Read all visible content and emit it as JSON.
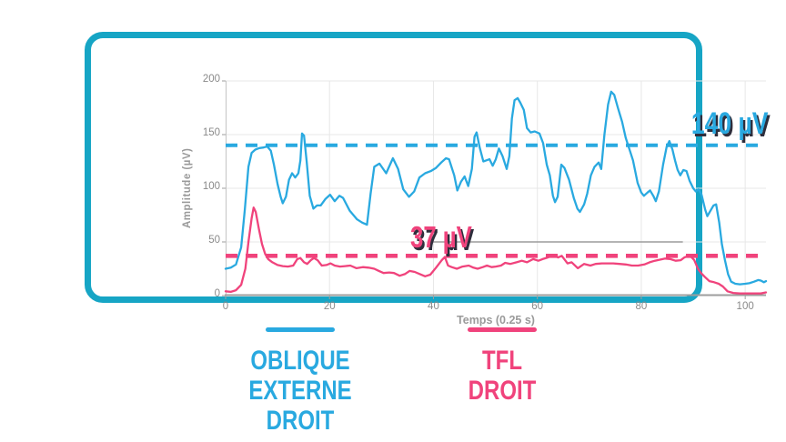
{
  "colors": {
    "frame_teal": "#16a5c5",
    "blue": "#29a9e0",
    "pink": "#f0437c",
    "annotation_shadow": "#2e2e3c",
    "gridline": "#e7e7e7",
    "axis_line": "#9e9e9e",
    "y_axis_line": "#c4c4c4",
    "tick_text": "#8a8a8a",
    "marker_gray": "#9b9b9b"
  },
  "chart_data": {
    "type": "line",
    "title": "",
    "xlabel": "Temps (0.25 s)",
    "ylabel": "Amplitude (µV)",
    "xlim": [
      0,
      104
    ],
    "ylim": [
      0,
      200
    ],
    "x_ticks": [
      0,
      20,
      40,
      60,
      80,
      100
    ],
    "y_ticks": [
      0,
      50,
      100,
      150,
      200
    ],
    "grid": true,
    "legend_position": "bottom",
    "thresholds": [
      {
        "label": "140 µV",
        "value": 140,
        "series": "OBLIQUE EXTERNE DROIT",
        "color": "#29a9e0",
        "dash_width": 4
      },
      {
        "label": "37 µV",
        "value": 37,
        "series": "TFL DROIT",
        "color": "#f0437c",
        "dash_width": 4.6
      }
    ],
    "marker_line": {
      "y": 50,
      "x_start": 39.5,
      "x_end": 88,
      "color": "#9b9b9b"
    },
    "series": [
      {
        "name": "OBLIQUE EXTERNE DROIT",
        "color": "#29a9e0",
        "points": [
          [
            0,
            25
          ],
          [
            1,
            26
          ],
          [
            2,
            29
          ],
          [
            3,
            45
          ],
          [
            3.7,
            80
          ],
          [
            4.4,
            120
          ],
          [
            5,
            133
          ],
          [
            5.7,
            136
          ],
          [
            6.5,
            137.5
          ],
          [
            7.3,
            138
          ],
          [
            8,
            139
          ],
          [
            8.7,
            135
          ],
          [
            9.3,
            122
          ],
          [
            10,
            104
          ],
          [
            10.6,
            92
          ],
          [
            11,
            86
          ],
          [
            11.6,
            92
          ],
          [
            12.2,
            108
          ],
          [
            12.8,
            114
          ],
          [
            13.4,
            110
          ],
          [
            14,
            114
          ],
          [
            14.4,
            126
          ],
          [
            14.7,
            151
          ],
          [
            15.1,
            149
          ],
          [
            15.6,
            125
          ],
          [
            16.2,
            93
          ],
          [
            16.9,
            81
          ],
          [
            17.6,
            84
          ],
          [
            18.3,
            84
          ],
          [
            19.2,
            90
          ],
          [
            20.1,
            94
          ],
          [
            21,
            88
          ],
          [
            21.9,
            93
          ],
          [
            22.6,
            91
          ],
          [
            23.9,
            79
          ],
          [
            25.3,
            71
          ],
          [
            26.3,
            68
          ],
          [
            27.2,
            66
          ],
          [
            27.9,
            95
          ],
          [
            28.6,
            120
          ],
          [
            29.6,
            123
          ],
          [
            30.9,
            114
          ],
          [
            32.2,
            128
          ],
          [
            33.2,
            118
          ],
          [
            34.2,
            99
          ],
          [
            35.3,
            92
          ],
          [
            36.3,
            97
          ],
          [
            37.3,
            110
          ],
          [
            38.4,
            114
          ],
          [
            39.5,
            116
          ],
          [
            40.5,
            119
          ],
          [
            41.5,
            124
          ],
          [
            42.4,
            128
          ],
          [
            43,
            127
          ],
          [
            44,
            112
          ],
          [
            44.6,
            98
          ],
          [
            45.3,
            106
          ],
          [
            46,
            111
          ],
          [
            46.7,
            102
          ],
          [
            47.4,
            118
          ],
          [
            47.9,
            148
          ],
          [
            48.3,
            152
          ],
          [
            48.9,
            138
          ],
          [
            49.6,
            125
          ],
          [
            50.2,
            126
          ],
          [
            50.8,
            127
          ],
          [
            51.4,
            121
          ],
          [
            52,
            127
          ],
          [
            52.6,
            137
          ],
          [
            53.3,
            130
          ],
          [
            54.1,
            118
          ],
          [
            54.6,
            130
          ],
          [
            55.1,
            165
          ],
          [
            55.6,
            182
          ],
          [
            56.2,
            184
          ],
          [
            56.7,
            180
          ],
          [
            57.4,
            173
          ],
          [
            58,
            156
          ],
          [
            58.7,
            152
          ],
          [
            59.5,
            153
          ],
          [
            60.4,
            151
          ],
          [
            61.1,
            142
          ],
          [
            61.8,
            122
          ],
          [
            62.4,
            112
          ],
          [
            63,
            93
          ],
          [
            63.4,
            87
          ],
          [
            63.9,
            92
          ],
          [
            64.6,
            122
          ],
          [
            65.2,
            119
          ],
          [
            66.1,
            108
          ],
          [
            67,
            91
          ],
          [
            67.7,
            81
          ],
          [
            68.2,
            78
          ],
          [
            69,
            85
          ],
          [
            69.6,
            95
          ],
          [
            70.3,
            112
          ],
          [
            71,
            120
          ],
          [
            71.8,
            124
          ],
          [
            72.3,
            118
          ],
          [
            72.9,
            150
          ],
          [
            73.6,
            178
          ],
          [
            74.2,
            190
          ],
          [
            74.8,
            187
          ],
          [
            75.5,
            175
          ],
          [
            76.3,
            162
          ],
          [
            77,
            147
          ],
          [
            77.8,
            135
          ],
          [
            78.4,
            126
          ],
          [
            79.3,
            105
          ],
          [
            80,
            96
          ],
          [
            80.5,
            93
          ],
          [
            81.2,
            96
          ],
          [
            81.7,
            98
          ],
          [
            82.3,
            93
          ],
          [
            82.8,
            88
          ],
          [
            83.4,
            97
          ],
          [
            84.2,
            122
          ],
          [
            84.9,
            139
          ],
          [
            85.4,
            144
          ],
          [
            86,
            136
          ],
          [
            86.5,
            126
          ],
          [
            87,
            117
          ],
          [
            87.5,
            112
          ],
          [
            88.1,
            117
          ],
          [
            88.7,
            116
          ],
          [
            89.3,
            107
          ],
          [
            90,
            100
          ],
          [
            90.5,
            97
          ],
          [
            91,
            99
          ],
          [
            91.6,
            94
          ],
          [
            92.3,
            80
          ],
          [
            92.7,
            74
          ],
          [
            93.3,
            79
          ],
          [
            93.9,
            84
          ],
          [
            94.4,
            85
          ],
          [
            95,
            68
          ],
          [
            95.5,
            48
          ],
          [
            96.1,
            33
          ],
          [
            96.7,
            20
          ],
          [
            97.3,
            13
          ],
          [
            98.1,
            11
          ],
          [
            99,
            10.5
          ],
          [
            100,
            11
          ],
          [
            100.8,
            11.5
          ],
          [
            101.7,
            13
          ],
          [
            102.5,
            14.5
          ],
          [
            103,
            14
          ],
          [
            103.6,
            12.5
          ],
          [
            104,
            13.5
          ]
        ]
      },
      {
        "name": "TFL DROIT",
        "color": "#f0437c",
        "points": [
          [
            0,
            4
          ],
          [
            1,
            3.5
          ],
          [
            2,
            5
          ],
          [
            3,
            10
          ],
          [
            3.8,
            25
          ],
          [
            4.4,
            50
          ],
          [
            5,
            72
          ],
          [
            5.4,
            82
          ],
          [
            5.8,
            78
          ],
          [
            6.4,
            62
          ],
          [
            7,
            48
          ],
          [
            7.6,
            39
          ],
          [
            8.2,
            34
          ],
          [
            9,
            31
          ],
          [
            10,
            28.5
          ],
          [
            11,
            27.5
          ],
          [
            12,
            27
          ],
          [
            13,
            28
          ],
          [
            13.8,
            34
          ],
          [
            14.4,
            35
          ],
          [
            15.1,
            31
          ],
          [
            15.7,
            29.5
          ],
          [
            16.4,
            33
          ],
          [
            17,
            35
          ],
          [
            17.7,
            33
          ],
          [
            18.5,
            28
          ],
          [
            19.4,
            28.5
          ],
          [
            20.2,
            30
          ],
          [
            21,
            28
          ],
          [
            22,
            27
          ],
          [
            23,
            27.5
          ],
          [
            24,
            28
          ],
          [
            25.2,
            25.5
          ],
          [
            26.4,
            26.5
          ],
          [
            27.5,
            26
          ],
          [
            28.6,
            25
          ],
          [
            29.5,
            23
          ],
          [
            30.4,
            21
          ],
          [
            31.5,
            21.5
          ],
          [
            32.4,
            21
          ],
          [
            33.5,
            18.5
          ],
          [
            34.5,
            20
          ],
          [
            35.4,
            23
          ],
          [
            36.4,
            22
          ],
          [
            37.4,
            20
          ],
          [
            38.4,
            18
          ],
          [
            39.4,
            19.5
          ],
          [
            40.5,
            26
          ],
          [
            41.6,
            33
          ],
          [
            42.2,
            36
          ],
          [
            42.8,
            28
          ],
          [
            43.5,
            26.5
          ],
          [
            44.5,
            25
          ],
          [
            45.6,
            27
          ],
          [
            46.8,
            28
          ],
          [
            47.7,
            26
          ],
          [
            48.5,
            25
          ],
          [
            49.5,
            26.5
          ],
          [
            50.3,
            28
          ],
          [
            51.2,
            26.5
          ],
          [
            52,
            27
          ],
          [
            53,
            28
          ],
          [
            53.8,
            30.5
          ],
          [
            54.8,
            29.5
          ],
          [
            56,
            31
          ],
          [
            57,
            32.5
          ],
          [
            58,
            31
          ],
          [
            59.2,
            34
          ],
          [
            60.2,
            32.5
          ],
          [
            61,
            34
          ],
          [
            62,
            35.5
          ],
          [
            63.2,
            38
          ],
          [
            64,
            35.5
          ],
          [
            64.7,
            37
          ],
          [
            65.8,
            30
          ],
          [
            66.6,
            31
          ],
          [
            67.8,
            25.5
          ],
          [
            69,
            29.5
          ],
          [
            70.2,
            28
          ],
          [
            71.2,
            29.5
          ],
          [
            72.4,
            30
          ],
          [
            73.6,
            30
          ],
          [
            74.6,
            30
          ],
          [
            75.8,
            29.5
          ],
          [
            77,
            29
          ],
          [
            78.2,
            28
          ],
          [
            79.4,
            28
          ],
          [
            80.6,
            29
          ],
          [
            81.6,
            31
          ],
          [
            82.6,
            32.5
          ],
          [
            83.6,
            33.5
          ],
          [
            84.6,
            34.5
          ],
          [
            85.6,
            34
          ],
          [
            86.6,
            32.5
          ],
          [
            87.6,
            33
          ],
          [
            88.3,
            35.5
          ],
          [
            88.8,
            36.5
          ],
          [
            89.6,
            36
          ],
          [
            90.2,
            33
          ],
          [
            90.9,
            25
          ],
          [
            91.5,
            21
          ],
          [
            92.2,
            17.5
          ],
          [
            93.1,
            13.5
          ],
          [
            94,
            12.5
          ],
          [
            94.9,
            11
          ],
          [
            95.7,
            8.5
          ],
          [
            96.6,
            4
          ],
          [
            97.7,
            2.5
          ],
          [
            99,
            2
          ],
          [
            100,
            2
          ],
          [
            101,
            2
          ],
          [
            102,
            2
          ],
          [
            103,
            2
          ],
          [
            104,
            3
          ]
        ]
      }
    ]
  },
  "legend": {
    "items": [
      {
        "label": "OBLIQUE EXTERNE\nDROIT",
        "color": "#29a9e0"
      },
      {
        "label": "TFL\nDROIT",
        "color": "#f0437c"
      }
    ]
  }
}
